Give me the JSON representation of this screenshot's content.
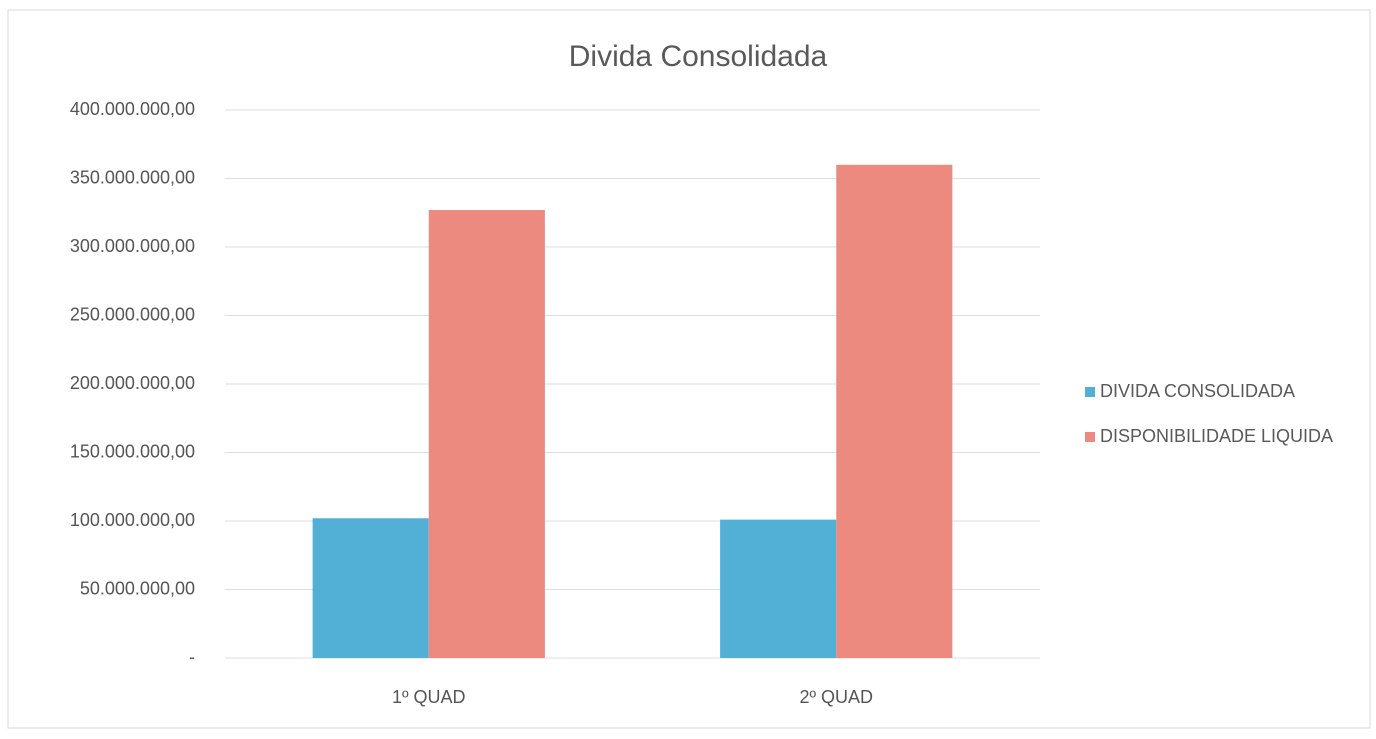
{
  "chart_data": {
    "type": "bar",
    "title": "Divida Consolidada",
    "categories": [
      "1º QUAD",
      "2º QUAD"
    ],
    "series": [
      {
        "name": "DIVIDA CONSOLIDADA",
        "color": "#52b0d6",
        "values": [
          102000000,
          101000000
        ]
      },
      {
        "name": "DISPONIBILIDADE LIQUIDA",
        "color": "#ec8a80",
        "values": [
          327000000,
          360000000
        ]
      }
    ],
    "ylim": [
      0,
      400000000
    ],
    "yticks": [
      {
        "value": 0,
        "label": "-"
      },
      {
        "value": 50000000,
        "label": "50.000.000,00"
      },
      {
        "value": 100000000,
        "label": "100.000.000,00"
      },
      {
        "value": 150000000,
        "label": "150.000.000,00"
      },
      {
        "value": 200000000,
        "label": "200.000.000,00"
      },
      {
        "value": 250000000,
        "label": "250.000.000,00"
      },
      {
        "value": 300000000,
        "label": "300.000.000,00"
      },
      {
        "value": 350000000,
        "label": "350.000.000,00"
      },
      {
        "value": 400000000,
        "label": "400.000.000,00"
      }
    ],
    "grid": true,
    "legend": "right"
  }
}
